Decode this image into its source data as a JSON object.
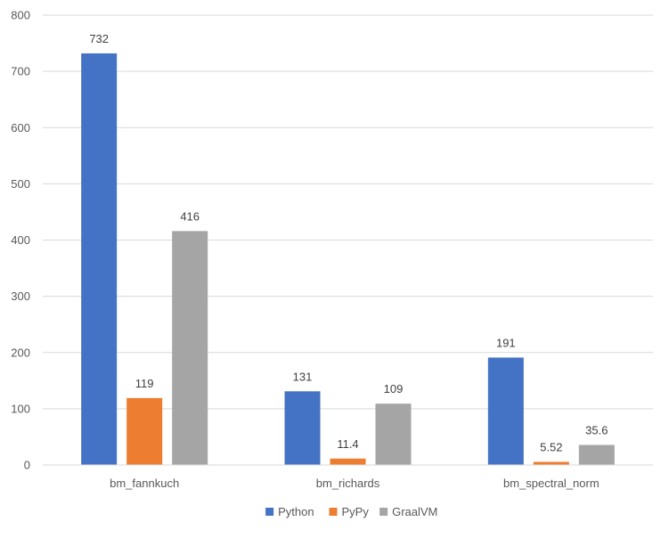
{
  "chart_data": {
    "type": "bar",
    "title": "",
    "xlabel": "",
    "ylabel": "",
    "categories": [
      "bm_fannkuch",
      "bm_richards",
      "bm_spectral_norm"
    ],
    "series": [
      {
        "name": "Python",
        "color": "#4472C4",
        "values": [
          732,
          131,
          191
        ],
        "labels": [
          "732",
          "131",
          "191"
        ]
      },
      {
        "name": "PyPy",
        "color": "#ED7D31",
        "values": [
          119,
          11.4,
          5.52
        ],
        "labels": [
          "119",
          "11.4",
          "5.52"
        ]
      },
      {
        "name": "GraalVM",
        "color": "#A5A5A5",
        "values": [
          416,
          109,
          35.6
        ],
        "labels": [
          "416",
          "109",
          "35.6"
        ]
      }
    ],
    "ylim": [
      0,
      800
    ],
    "yticks": [
      "0",
      "100",
      "200",
      "300",
      "400",
      "500",
      "600",
      "700",
      "800"
    ],
    "grid": true,
    "legend": "bottom-center"
  }
}
